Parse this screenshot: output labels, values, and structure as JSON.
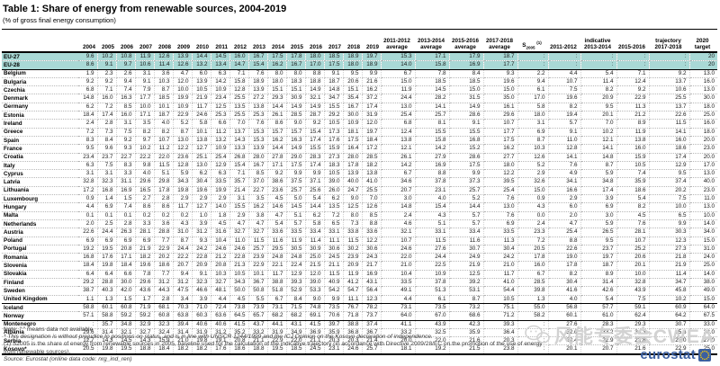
{
  "title": "Table 1: Share of energy from renewable sources, 2004-2019",
  "subtitle": "(% of gross final energy consumption)",
  "header_groups": {
    "years": [
      "2004",
      "2005",
      "2006",
      "2007",
      "2008",
      "2009",
      "2010",
      "2011",
      "2012",
      "2013",
      "2014",
      "2015",
      "2016",
      "2017",
      "2018",
      "2019"
    ],
    "averages": [
      [
        "2011-2012",
        "average"
      ],
      [
        "2013-2014",
        "average"
      ],
      [
        "2015-2016",
        "average"
      ],
      [
        "2017-2018",
        "average"
      ]
    ],
    "s2005": {
      "base": "S",
      "sub": "2005",
      "note": "(1)"
    },
    "trajectory": [
      [
        "",
        "2011-2012"
      ],
      [
        "indicative",
        "2013-2014"
      ],
      [
        "",
        "2015-2016"
      ],
      [
        "trajectory",
        "2017-2018"
      ]
    ],
    "target": [
      "2020 target",
      ""
    ]
  },
  "rows": [
    {
      "name": "EU-27",
      "values": [
        "9.6",
        "10.2",
        "10.8",
        "11.9",
        "12.6",
        "13.9",
        "14.4",
        "14.5",
        "16.0",
        "16.7",
        "17.5",
        "17.8",
        "18.0",
        "18.5",
        "18.9",
        "19.7",
        "15.3",
        "17.1",
        "17.9",
        "18.7",
        ":",
        ":",
        ":",
        ":",
        ":",
        "20"
      ]
    },
    {
      "name": "EU-28",
      "values": [
        "8.6",
        "9.1",
        "9.7",
        "10.6",
        "11.4",
        "12.6",
        "13.2",
        "13.4",
        "14.7",
        "15.4",
        "16.2",
        "16.7",
        "17.0",
        "17.5",
        "18.0",
        "18.9",
        "14.0",
        "15.8",
        "16.9",
        "17.7",
        ":",
        ":",
        ":",
        ":",
        ":",
        "20"
      ]
    },
    {
      "name": "Belgium",
      "values": [
        "1.9",
        "2.3",
        "2.6",
        "3.1",
        "3.6",
        "4.7",
        "6.0",
        "6.3",
        "7.1",
        "7.6",
        "8.0",
        "8.0",
        "8.8",
        "9.1",
        "9.5",
        "9.9",
        "6.7",
        "7.8",
        "8.4",
        "9.3",
        "2.2",
        "4.4",
        "5.4",
        "7.1",
        "9.2",
        "13.0"
      ]
    },
    {
      "name": "Bulgaria",
      "values": [
        "9.2",
        "9.2",
        "9.4",
        "9.1",
        "10.3",
        "12.0",
        "13.9",
        "14.2",
        "15.8",
        "18.9",
        "18.0",
        "18.3",
        "18.8",
        "18.7",
        "20.6",
        "21.6",
        "15.0",
        "18.5",
        "18.5",
        "19.6",
        "9.4",
        "10.7",
        "11.4",
        "12.4",
        "13.7",
        "16.0"
      ]
    },
    {
      "name": "Czechia",
      "values": [
        "6.8",
        "7.1",
        "7.4",
        "7.9",
        "8.7",
        "10.0",
        "10.5",
        "10.9",
        "12.8",
        "13.9",
        "15.1",
        "15.1",
        "14.9",
        "14.8",
        "15.1",
        "16.2",
        "11.9",
        "14.5",
        "15.0",
        "15.0",
        "6.1",
        "7.5",
        "8.2",
        "9.2",
        "10.6",
        "13.0"
      ]
    },
    {
      "name": "Denmark",
      "values": [
        "14.8",
        "16.0",
        "16.3",
        "17.7",
        "18.5",
        "19.9",
        "21.9",
        "23.4",
        "25.5",
        "27.2",
        "29.3",
        "30.9",
        "32.1",
        "34.7",
        "35.4",
        "37.2",
        "24.4",
        "28.2",
        "31.5",
        "35.0",
        "17.0",
        "19.6",
        "20.9",
        "22.9",
        "25.5",
        "30.0"
      ]
    },
    {
      "name": "Germany",
      "values": [
        "6.2",
        "7.2",
        "8.5",
        "10.0",
        "10.1",
        "10.9",
        "11.7",
        "12.5",
        "13.5",
        "13.8",
        "14.4",
        "14.9",
        "14.9",
        "15.5",
        "16.7",
        "17.4",
        "13.0",
        "14.1",
        "14.9",
        "16.1",
        "5.8",
        "8.2",
        "9.5",
        "11.3",
        "13.7",
        "18.0"
      ]
    },
    {
      "name": "Estonia",
      "values": [
        "18.4",
        "17.4",
        "16.0",
        "17.1",
        "18.7",
        "22.9",
        "24.6",
        "25.3",
        "25.5",
        "25.3",
        "26.1",
        "28.5",
        "28.7",
        "29.2",
        "30.0",
        "31.9",
        "25.4",
        "25.7",
        "28.6",
        "29.6",
        "18.0",
        "19.4",
        "20.1",
        "21.2",
        "22.6",
        "25.0"
      ]
    },
    {
      "name": "Ireland",
      "values": [
        "2.4",
        "2.8",
        "3.1",
        "3.5",
        "4.0",
        "5.2",
        "5.8",
        "6.6",
        "7.0",
        "7.6",
        "8.6",
        "9.0",
        "9.2",
        "10.5",
        "10.9",
        "12.0",
        "6.8",
        "8.1",
        "9.1",
        "10.7",
        "3.1",
        "5.7",
        "7.0",
        "8.9",
        "11.5",
        "16.0"
      ]
    },
    {
      "name": "Greece",
      "values": [
        "7.2",
        "7.3",
        "7.5",
        "8.2",
        "8.2",
        "8.7",
        "10.1",
        "11.2",
        "13.7",
        "15.3",
        "15.7",
        "15.7",
        "15.4",
        "17.3",
        "18.1",
        "19.7",
        "12.4",
        "15.5",
        "15.5",
        "17.7",
        "6.9",
        "9.1",
        "10.2",
        "11.9",
        "14.1",
        "18.0"
      ]
    },
    {
      "name": "Spain",
      "values": [
        "8.3",
        "8.4",
        "9.2",
        "9.7",
        "10.7",
        "13.0",
        "13.8",
        "13.2",
        "14.3",
        "15.3",
        "16.2",
        "16.3",
        "17.4",
        "17.6",
        "17.5",
        "18.4",
        "13.8",
        "15.8",
        "16.8",
        "17.5",
        "8.7",
        "11.0",
        "12.1",
        "13.8",
        "16.0",
        "20.0"
      ]
    },
    {
      "name": "France",
      "values": [
        "9.5",
        "9.6",
        "9.3",
        "10.2",
        "11.2",
        "12.2",
        "12.7",
        "10.9",
        "13.3",
        "13.9",
        "14.4",
        "14.9",
        "15.5",
        "15.9",
        "16.4",
        "17.2",
        "12.1",
        "14.2",
        "15.2",
        "16.2",
        "10.3",
        "12.8",
        "14.1",
        "16.0",
        "18.6",
        "23.0"
      ]
    },
    {
      "name": "Croatia",
      "values": [
        "23.4",
        "23.7",
        "22.7",
        "22.2",
        "22.0",
        "23.6",
        "25.1",
        "25.4",
        "26.8",
        "28.0",
        "27.8",
        "29.0",
        "28.3",
        "27.3",
        "28.0",
        "28.5",
        "26.1",
        "27.9",
        "28.6",
        "27.7",
        "12.6",
        "14.1",
        "14.8",
        "15.9",
        "17.4",
        "20.0"
      ]
    },
    {
      "name": "Italy",
      "values": [
        "6.3",
        "7.5",
        "8.3",
        "9.8",
        "11.5",
        "12.8",
        "13.0",
        "12.9",
        "15.4",
        "16.7",
        "17.1",
        "17.5",
        "17.4",
        "18.3",
        "17.8",
        "18.2",
        "14.2",
        "16.9",
        "17.5",
        "18.0",
        "5.2",
        "7.6",
        "8.7",
        "10.5",
        "12.9",
        "17.0"
      ]
    },
    {
      "name": "Cyprus",
      "values": [
        "3.1",
        "3.1",
        "3.3",
        "4.0",
        "5.1",
        "5.9",
        "6.2",
        "6.3",
        "7.1",
        "8.5",
        "9.2",
        "9.9",
        "9.9",
        "10.5",
        "13.9",
        "13.8",
        "6.7",
        "8.8",
        "9.9",
        "12.2",
        "2.9",
        "4.9",
        "5.9",
        "7.4",
        "9.5",
        "13.0"
      ]
    },
    {
      "name": "Latvia",
      "values": [
        "32.8",
        "32.3",
        "31.1",
        "29.6",
        "29.8",
        "34.3",
        "30.4",
        "33.5",
        "35.7",
        "37.0",
        "38.6",
        "37.5",
        "37.1",
        "39.0",
        "40.0",
        "41.0",
        "34.6",
        "37.8",
        "37.3",
        "39.5",
        "32.6",
        "34.1",
        "34.8",
        "35.9",
        "37.4",
        "40.0"
      ]
    },
    {
      "name": "Lithuania",
      "values": [
        "17.2",
        "16.8",
        "16.9",
        "16.5",
        "17.8",
        "19.8",
        "19.6",
        "19.9",
        "21.4",
        "22.7",
        "23.6",
        "25.7",
        "25.6",
        "26.0",
        "24.7",
        "25.5",
        "20.7",
        "23.1",
        "25.7",
        "25.4",
        "15.0",
        "16.6",
        "17.4",
        "18.6",
        "20.2",
        "23.0"
      ]
    },
    {
      "name": "Luxembourg",
      "values": [
        "0.9",
        "1.4",
        "1.5",
        "2.7",
        "2.8",
        "2.9",
        "2.9",
        "2.9",
        "3.1",
        "3.5",
        "4.5",
        "5.0",
        "5.4",
        "6.2",
        "9.0",
        "7.0",
        "3.0",
        "4.0",
        "5.2",
        "7.6",
        "0.9",
        "2.9",
        "3.9",
        "5.4",
        "7.5",
        "11.0"
      ]
    },
    {
      "name": "Hungary",
      "values": [
        "4.4",
        "6.9",
        "7.4",
        "8.6",
        "8.6",
        "11.7",
        "12.7",
        "14.0",
        "15.5",
        "16.2",
        "14.6",
        "14.5",
        "14.4",
        "13.5",
        "12.5",
        "12.6",
        "14.8",
        "15.4",
        "14.4",
        "13.0",
        "4.3",
        "6.0",
        "6.9",
        "8.2",
        "10.0",
        "13.0"
      ]
    },
    {
      "name": "Malta",
      "values": [
        "0.1",
        "0.1",
        "0.1",
        "0.2",
        "0.2",
        "0.2",
        "1.0",
        "1.8",
        "2.9",
        "3.8",
        "4.7",
        "5.1",
        "6.2",
        "7.2",
        "8.0",
        "8.5",
        "2.4",
        "4.3",
        "5.7",
        "7.6",
        "0.0",
        "2.0",
        "3.0",
        "4.5",
        "6.5",
        "10.0"
      ]
    },
    {
      "name": "Netherlands",
      "values": [
        "2.0",
        "2.5",
        "2.8",
        "3.3",
        "3.6",
        "4.3",
        "3.9",
        "4.5",
        "4.7",
        "4.7",
        "5.4",
        "5.7",
        "5.8",
        "6.5",
        "7.3",
        "8.8",
        "4.6",
        "5.1",
        "5.7",
        "6.9",
        "2.4",
        "4.7",
        "5.9",
        "7.6",
        "9.9",
        "14.0"
      ]
    },
    {
      "name": "Austria",
      "values": [
        "22.6",
        "24.4",
        "26.3",
        "28.1",
        "28.8",
        "31.0",
        "31.2",
        "31.6",
        "32.7",
        "32.7",
        "33.6",
        "33.5",
        "33.4",
        "33.1",
        "33.8",
        "33.6",
        "32.1",
        "33.1",
        "33.4",
        "33.5",
        "23.3",
        "25.4",
        "26.5",
        "28.1",
        "30.3",
        "34.0"
      ]
    },
    {
      "name": "Poland",
      "values": [
        "6.9",
        "6.9",
        "6.9",
        "6.9",
        "7.7",
        "8.7",
        "9.3",
        "10.4",
        "11.0",
        "11.5",
        "11.6",
        "11.9",
        "11.4",
        "11.1",
        "11.5",
        "12.2",
        "10.7",
        "11.5",
        "11.6",
        "11.3",
        "7.2",
        "8.8",
        "9.5",
        "10.7",
        "12.3",
        "15.0"
      ]
    },
    {
      "name": "Portugal",
      "values": [
        "19.2",
        "19.5",
        "20.8",
        "21.9",
        "22.9",
        "24.4",
        "24.2",
        "24.6",
        "24.6",
        "25.7",
        "29.5",
        "30.5",
        "30.9",
        "30.6",
        "30.2",
        "30.6",
        "24.6",
        "27.6",
        "30.7",
        "30.4",
        "20.5",
        "22.6",
        "23.7",
        "25.2",
        "27.3",
        "31.0"
      ]
    },
    {
      "name": "Romania",
      "values": [
        "16.8",
        "17.6",
        "17.1",
        "18.2",
        "20.2",
        "22.2",
        "22.8",
        "21.2",
        "22.8",
        "23.9",
        "24.8",
        "24.8",
        "25.0",
        "24.5",
        "23.9",
        "24.3",
        "22.0",
        "24.4",
        "24.9",
        "24.2",
        "17.8",
        "19.0",
        "19.7",
        "20.6",
        "21.8",
        "24.0"
      ]
    },
    {
      "name": "Slovenia",
      "values": [
        "18.4",
        "19.8",
        "18.4",
        "19.6",
        "18.6",
        "20.7",
        "20.9",
        "20.8",
        "21.3",
        "22.9",
        "22.1",
        "22.4",
        "21.5",
        "21.1",
        "20.9",
        "21.7",
        "21.0",
        "22.5",
        "21.9",
        "21.0",
        "16.0",
        "17.8",
        "18.7",
        "20.1",
        "21.9",
        "25.0"
      ]
    },
    {
      "name": "Slovakia",
      "values": [
        "6.4",
        "6.4",
        "6.6",
        "7.8",
        "7.7",
        "9.4",
        "9.1",
        "10.3",
        "10.5",
        "10.1",
        "11.7",
        "12.9",
        "12.0",
        "11.5",
        "11.9",
        "16.9",
        "10.4",
        "10.9",
        "12.5",
        "11.7",
        "6.7",
        "8.2",
        "8.9",
        "10.0",
        "11.4",
        "14.0"
      ]
    },
    {
      "name": "Finland",
      "values": [
        "29.2",
        "28.8",
        "30.0",
        "29.6",
        "31.2",
        "31.2",
        "32.3",
        "32.7",
        "34.3",
        "36.7",
        "38.8",
        "39.3",
        "39.0",
        "40.9",
        "41.2",
        "43.1",
        "33.5",
        "37.8",
        "39.2",
        "41.0",
        "28.5",
        "30.4",
        "31.4",
        "32.8",
        "34.7",
        "38.0"
      ]
    },
    {
      "name": "Sweden",
      "values": [
        "38.7",
        "40.3",
        "42.0",
        "43.6",
        "44.3",
        "47.5",
        "46.6",
        "48.1",
        "50.0",
        "50.8",
        "51.8",
        "52.9",
        "53.3",
        "54.2",
        "54.7",
        "56.4",
        "49.1",
        "51.3",
        "53.1",
        "54.4",
        "39.8",
        "41.6",
        "42.6",
        "43.9",
        "45.8",
        "49.0"
      ]
    },
    {
      "name": "United Kingdom",
      "values": [
        "1.1",
        "1.3",
        "1.5",
        "1.7",
        "2.8",
        "3.4",
        "3.9",
        "4.4",
        "4.5",
        "5.5",
        "6.7",
        "8.4",
        "9.0",
        "9.9",
        "11.1",
        "12.3",
        "4.4",
        "6.1",
        "8.7",
        "10.5",
        "1.3",
        "4.0",
        "5.4",
        "7.5",
        "10.2",
        "15.0"
      ]
    },
    {
      "name": "Iceland",
      "values": [
        "58.8",
        "60.1",
        "60.8",
        "71.9",
        "68.1",
        "70.3",
        "71.0",
        "72.4",
        "73.8",
        "73.9",
        "73.1",
        "71.5",
        "74.8",
        "73.5",
        "76.7",
        "78.2",
        "73.1",
        "73.5",
        "73.2",
        "75.1",
        "55.0",
        "56.8",
        "57.7",
        "59.1",
        "60.9",
        "64.0"
      ]
    },
    {
      "name": "Norway",
      "values": [
        "57.1",
        "58.8",
        "59.2",
        "59.2",
        "60.8",
        "63.8",
        "60.3",
        "63.6",
        "64.5",
        "65.7",
        "68.2",
        "68.2",
        "69.1",
        "70.6",
        "71.8",
        "73.7",
        "64.0",
        "67.0",
        "68.6",
        "71.2",
        "58.2",
        "60.1",
        "61.0",
        "62.4",
        "64.2",
        "67.5"
      ]
    },
    {
      "name": "Montenegro",
      "values": [
        ":",
        "35.7",
        "34.8",
        "32.9",
        "32.3",
        "39.4",
        "40.6",
        "40.6",
        "41.5",
        "43.7",
        "44.1",
        "43.1",
        "41.5",
        "39.7",
        "38.8",
        "37.4",
        "41.1",
        "43.9",
        "42.3",
        "39.3",
        ":",
        "27.6",
        "28.3",
        "29.3",
        "30.7",
        "33.0"
      ]
    },
    {
      "name": "Albania",
      "values": [
        "29.6",
        "31.4",
        "32.1",
        "32.7",
        "32.4",
        "31.4",
        "31.9",
        "31.2",
        "35.2",
        "33.2",
        "31.9",
        "34.9",
        "36.9",
        "35.9",
        "36.8",
        "36.7",
        "33.2",
        "32.5",
        "35.9",
        "36.4",
        ":",
        "32.6",
        "33.2",
        "34.3",
        "35.6",
        "38.0"
      ]
    },
    {
      "name": "Serbia",
      "values": [
        "12.7",
        "14.3",
        "14.5",
        "14.3",
        "15.9",
        "21.0",
        "19.8",
        "19.1",
        "20.8",
        "21.1",
        "22.9",
        "22.0",
        "21.1",
        "20.3",
        "20.3",
        "21.4",
        "20.0",
        "22.0",
        "21.6",
        "20.3",
        ":",
        "22.4",
        "22.9",
        "23.8",
        "25.0",
        "27.0"
      ]
    },
    {
      "name": "Kosovo*",
      "values": [
        "20.5",
        "19.8",
        "19.5",
        "18.8",
        "18.4",
        "18.2",
        "18.2",
        "17.6",
        "18.6",
        "18.8",
        "19.5",
        "18.5",
        "24.5",
        "23.1",
        "24.6",
        "25.7",
        "18.1",
        "19.2",
        "21.5",
        "23.8",
        ":",
        "20.1",
        "20.7",
        "21.6",
        "22.9",
        "25.0"
      ]
    }
  ],
  "notes": [
    "Note: \":\" means data not available",
    "* This designation is without prejudice to positions on status, and is in line with UNSCR 1244/1999 and the ICJ Opinion on the Kosovo declaration of independence.",
    "(1) S2005 is the share of energy from renewable sources in 2005, baseline used for the calculation of the indicative trajectory (in accordance with Directive 2009/28/EC on the promotion of the use of energy from renewable sources)."
  ],
  "source": "Source: Eurostat (online data code: nrg_ind_ren)",
  "watermark": "风能专委会CWEA",
  "logo_text": "eurostat",
  "colors": {
    "highlight_row": "#a9d9d6",
    "eurostat_blue": "#3b5fa0",
    "star_yellow": "#ffcc00",
    "watermark_gray": "#d2d2d2"
  }
}
